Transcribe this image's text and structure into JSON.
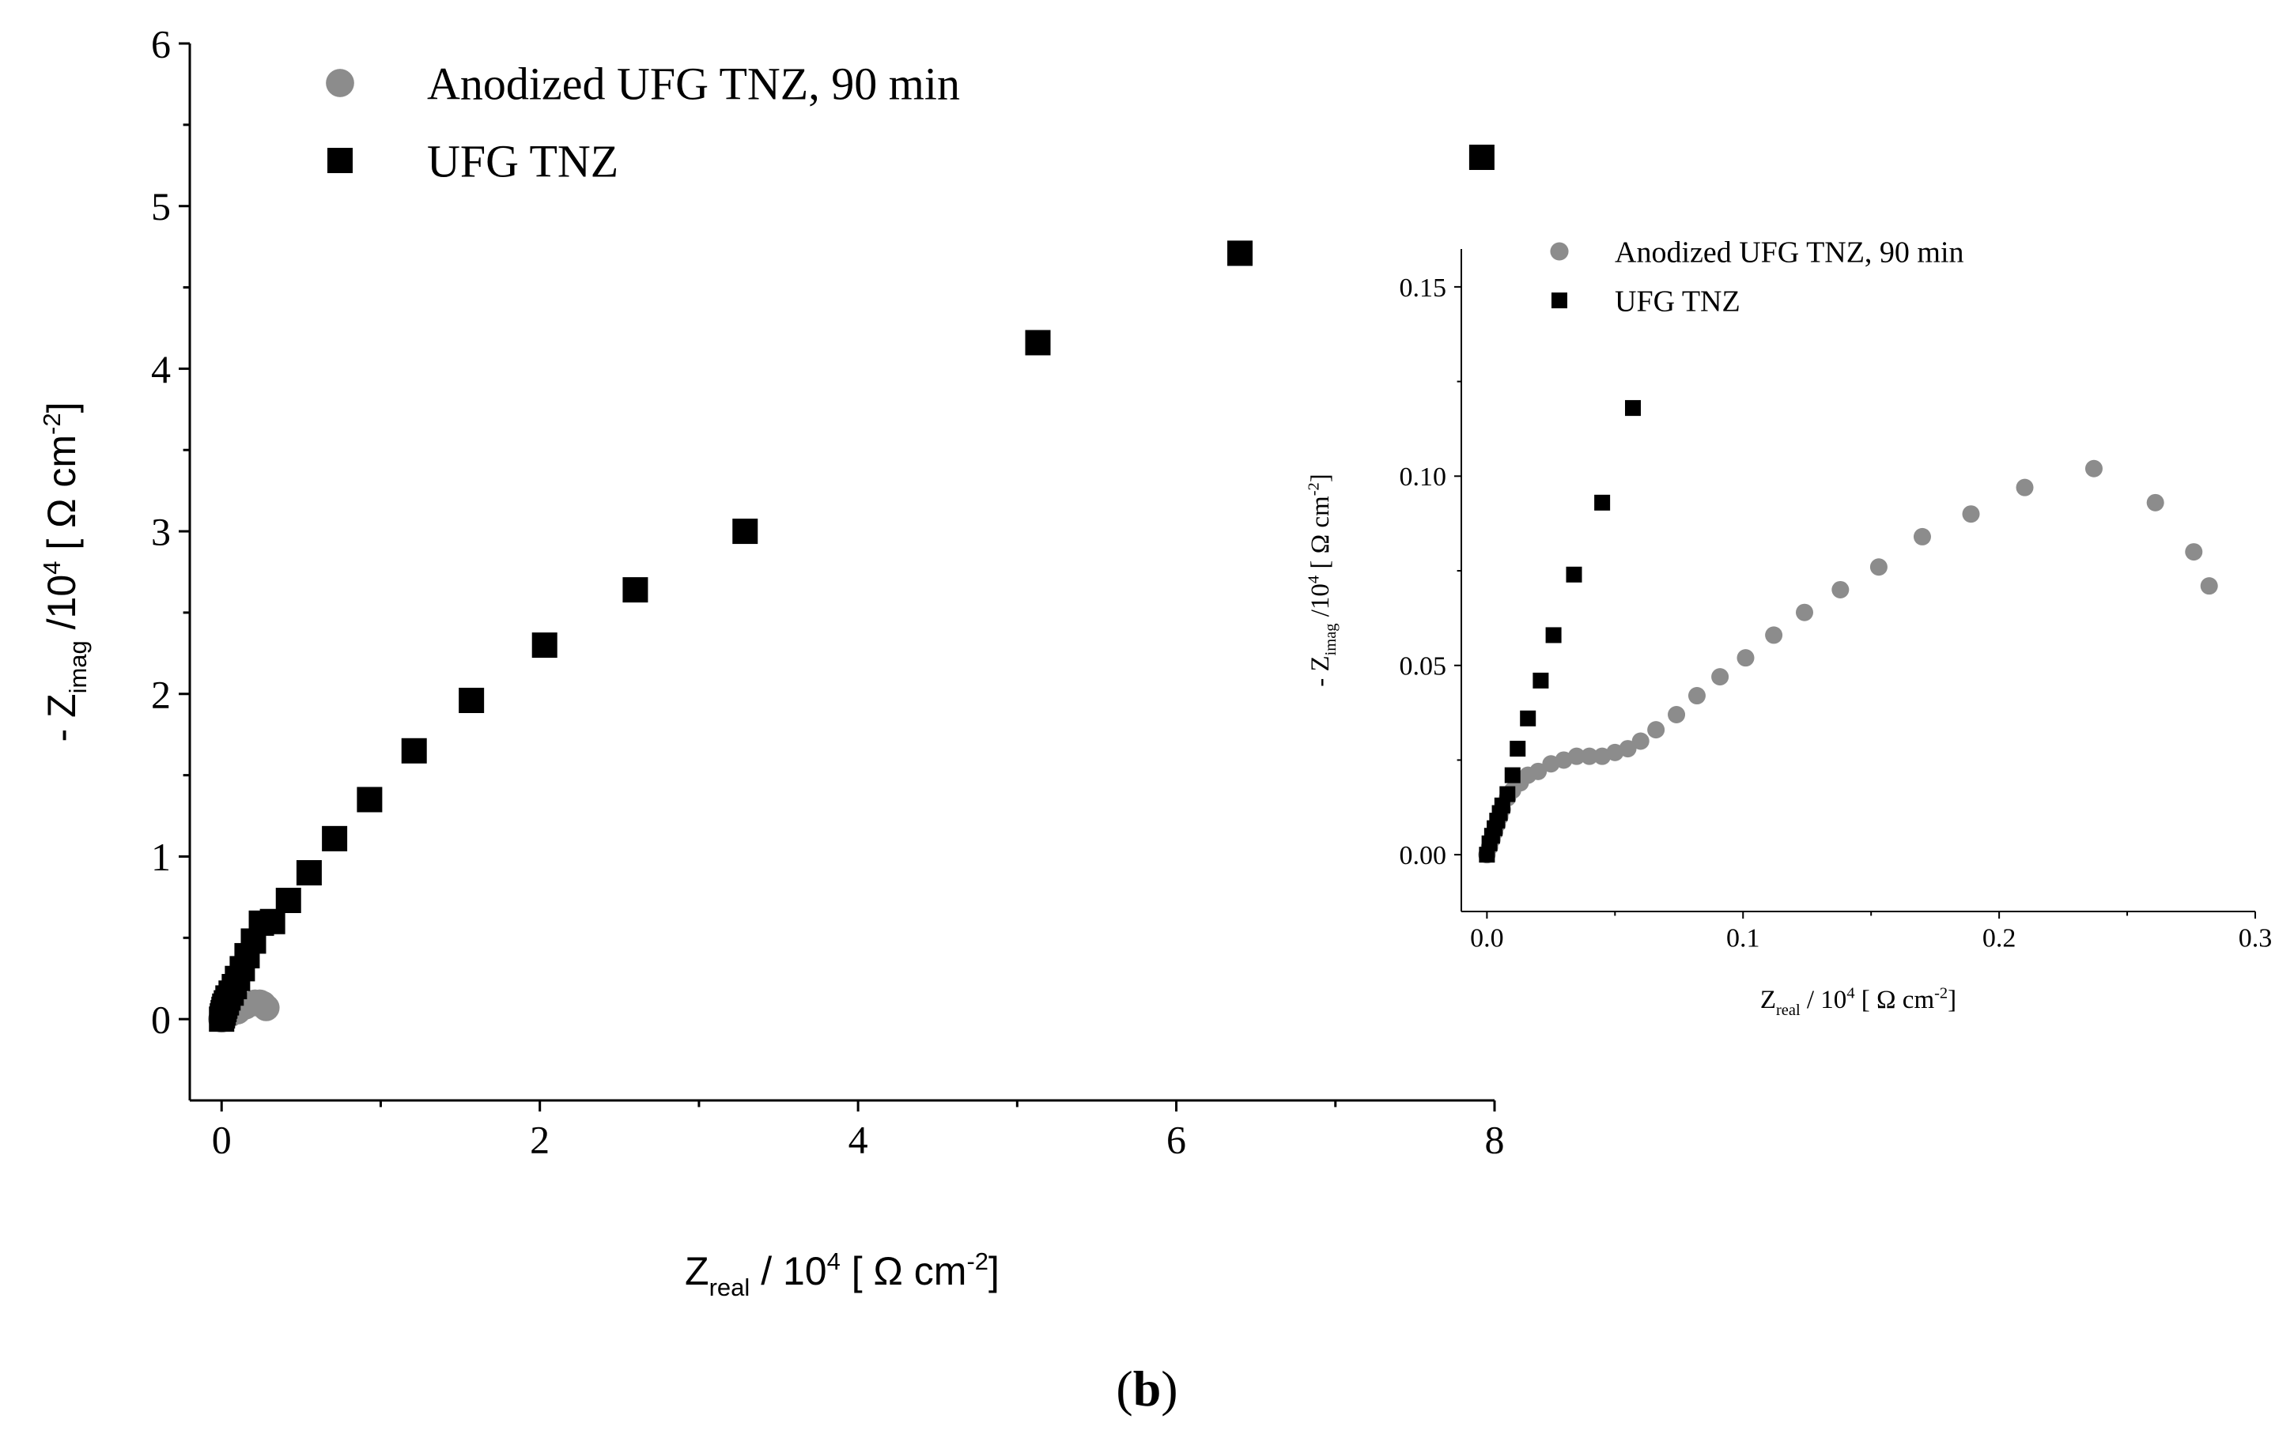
{
  "panel_label": {
    "open": "(",
    "letter": "b",
    "close": ")"
  },
  "colors": {
    "anodized": "#8c8c8c",
    "ufg": "#000000",
    "axis": "#000000"
  },
  "chart_data": [
    {
      "id": "main",
      "type": "scatter",
      "xlabel": {
        "main": "Z",
        "sub": "real",
        "rest": " / 10",
        "sup": "4",
        "unit": " [ Ω cm",
        "unit_sup": "-2",
        "close": "]"
      },
      "ylabel": {
        "prefix": "- Z",
        "sub": "imag",
        "rest": " /10",
        "sup": "4",
        "unit": " [ Ω cm",
        "unit_sup": "-2",
        "close": "]"
      },
      "xlim": [
        -0.2,
        8
      ],
      "ylim": [
        -0.5,
        6
      ],
      "xticks": [
        0,
        2,
        4,
        6,
        8
      ],
      "yticks": [
        0,
        1,
        2,
        3,
        4,
        5,
        6
      ],
      "xtick_labels": [
        "0",
        "2",
        "4",
        "6",
        "8"
      ],
      "ytick_labels": [
        "0",
        "1",
        "2",
        "3",
        "4",
        "5",
        "6"
      ],
      "grid": false,
      "legend_position": "top-left",
      "series": [
        {
          "name": "Anodized UFG TNZ, 90 min",
          "marker": "circle",
          "color": "#8c8c8c",
          "x": [
            0.0,
            0.02,
            0.05,
            0.1,
            0.15,
            0.21,
            0.24,
            0.26,
            0.28
          ],
          "y": [
            0.0,
            0.02,
            0.03,
            0.05,
            0.08,
            0.1,
            0.1,
            0.09,
            0.07
          ]
        },
        {
          "name": "UFG TNZ",
          "marker": "square",
          "color": "#000000",
          "x": [
            0.0,
            0.005,
            0.01,
            0.015,
            0.02,
            0.03,
            0.04,
            0.06,
            0.08,
            0.1,
            0.13,
            0.16,
            0.2,
            0.25,
            0.32,
            0.42,
            0.55,
            0.71,
            0.93,
            1.21,
            1.57,
            2.03,
            2.6,
            3.29,
            5.13,
            6.4,
            7.92
          ],
          "y": [
            0.0,
            0.02,
            0.04,
            0.06,
            0.08,
            0.1,
            0.13,
            0.16,
            0.2,
            0.25,
            0.31,
            0.39,
            0.48,
            0.59,
            0.6,
            0.73,
            0.9,
            1.11,
            1.35,
            1.65,
            1.96,
            2.3,
            2.64,
            3.0,
            4.16,
            4.71,
            5.3
          ]
        }
      ]
    },
    {
      "id": "inset",
      "type": "scatter",
      "xlabel": {
        "main": "Z",
        "sub": "real",
        "rest": " / 10",
        "sup": "4",
        "unit": " [ Ω cm",
        "unit_sup": "-2",
        "close": "]"
      },
      "ylabel": {
        "prefix": "- Z",
        "sub": "imag",
        "rest": " /10",
        "sup": "4",
        "unit": " [ Ω cm",
        "unit_sup": "-2",
        "close": "]"
      },
      "xlim": [
        -0.01,
        0.3
      ],
      "ylim": [
        -0.015,
        0.16
      ],
      "xticks": [
        0.0,
        0.1,
        0.2,
        0.3
      ],
      "yticks": [
        0.0,
        0.05,
        0.1,
        0.15
      ],
      "xtick_labels": [
        "0.0",
        "0.1",
        "0.2",
        "0.3"
      ],
      "ytick_labels": [
        "0.00",
        "0.05",
        "0.10",
        "0.15"
      ],
      "grid": false,
      "legend_position": "top-left",
      "series": [
        {
          "name": "Anodized UFG TNZ, 90 min",
          "marker": "circle",
          "color": "#8c8c8c",
          "x": [
            0.0,
            0.001,
            0.002,
            0.003,
            0.004,
            0.005,
            0.006,
            0.008,
            0.01,
            0.013,
            0.016,
            0.02,
            0.025,
            0.03,
            0.035,
            0.04,
            0.045,
            0.05,
            0.055,
            0.06,
            0.066,
            0.074,
            0.082,
            0.091,
            0.101,
            0.112,
            0.124,
            0.138,
            0.153,
            0.17,
            0.189,
            0.21,
            0.237,
            0.261,
            0.276,
            0.282
          ],
          "y": [
            0.0,
            0.002,
            0.004,
            0.006,
            0.008,
            0.01,
            0.012,
            0.015,
            0.017,
            0.019,
            0.021,
            0.022,
            0.024,
            0.025,
            0.026,
            0.026,
            0.026,
            0.027,
            0.028,
            0.03,
            0.033,
            0.037,
            0.042,
            0.047,
            0.052,
            0.058,
            0.064,
            0.07,
            0.076,
            0.084,
            0.09,
            0.097,
            0.102,
            0.093,
            0.08,
            0.071
          ]
        },
        {
          "name": "UFG TNZ",
          "marker": "square",
          "color": "#000000",
          "x": [
            0.0,
            0.001,
            0.002,
            0.003,
            0.004,
            0.005,
            0.006,
            0.008,
            0.01,
            0.012,
            0.016,
            0.021,
            0.026,
            0.034,
            0.045,
            0.057
          ],
          "y": [
            0.0,
            0.003,
            0.005,
            0.007,
            0.009,
            0.011,
            0.013,
            0.016,
            0.021,
            0.028,
            0.036,
            0.046,
            0.058,
            0.074,
            0.093,
            0.118
          ]
        }
      ]
    }
  ]
}
